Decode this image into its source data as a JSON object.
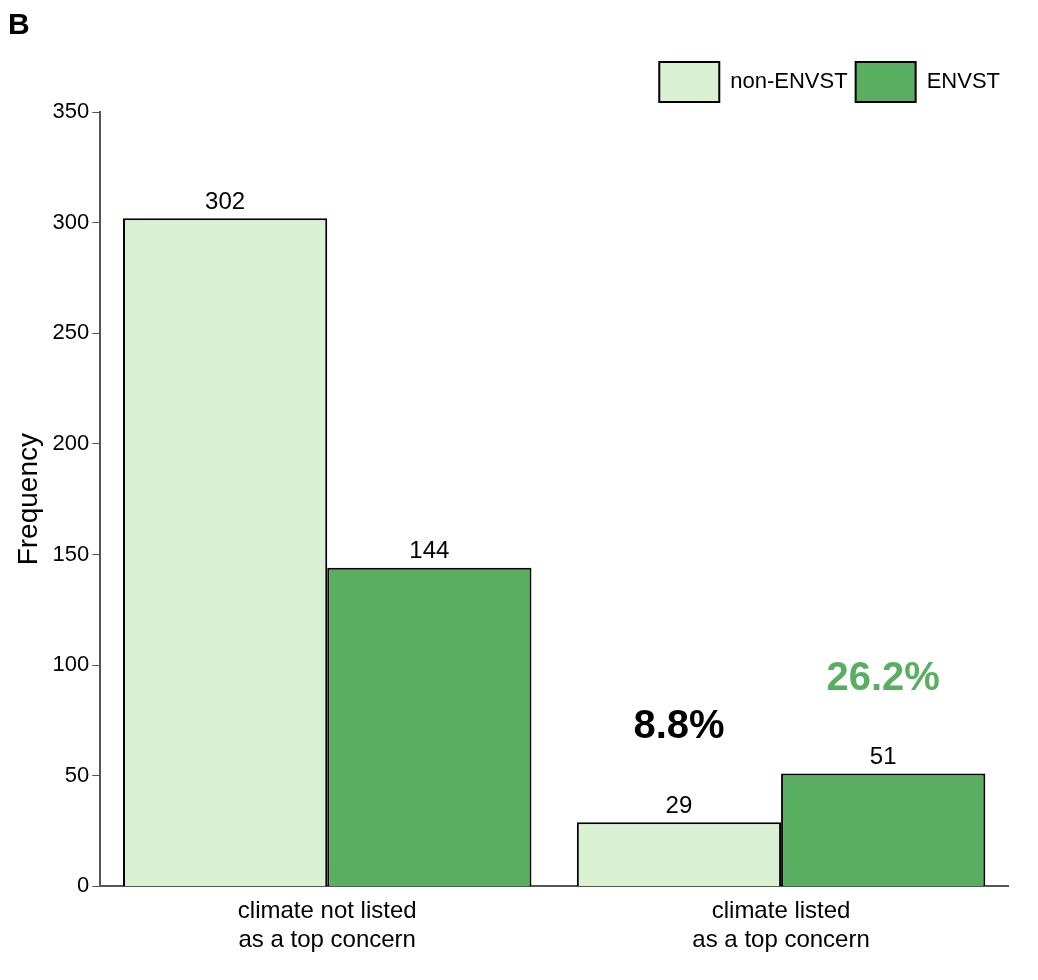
{
  "chart_data": {
    "type": "bar",
    "title": "B",
    "ylabel": "Frequency",
    "categories": [
      "climate not listed as a top concern",
      "climate listed as a top concern"
    ],
    "series": [
      {
        "name": "non-ENVST",
        "color": "#d9f0d3",
        "values": [
          302,
          29
        ]
      },
      {
        "name": "ENVST",
        "color": "#5aae61",
        "values": [
          144,
          51
        ]
      }
    ],
    "ylim": [
      0,
      350
    ],
    "yticks": [
      0,
      50,
      100,
      150,
      200,
      250,
      300,
      350
    ],
    "grid": false,
    "legend": "top right",
    "data_labels": true,
    "annotations": [
      "8.8%",
      "26.2%"
    ]
  }
}
